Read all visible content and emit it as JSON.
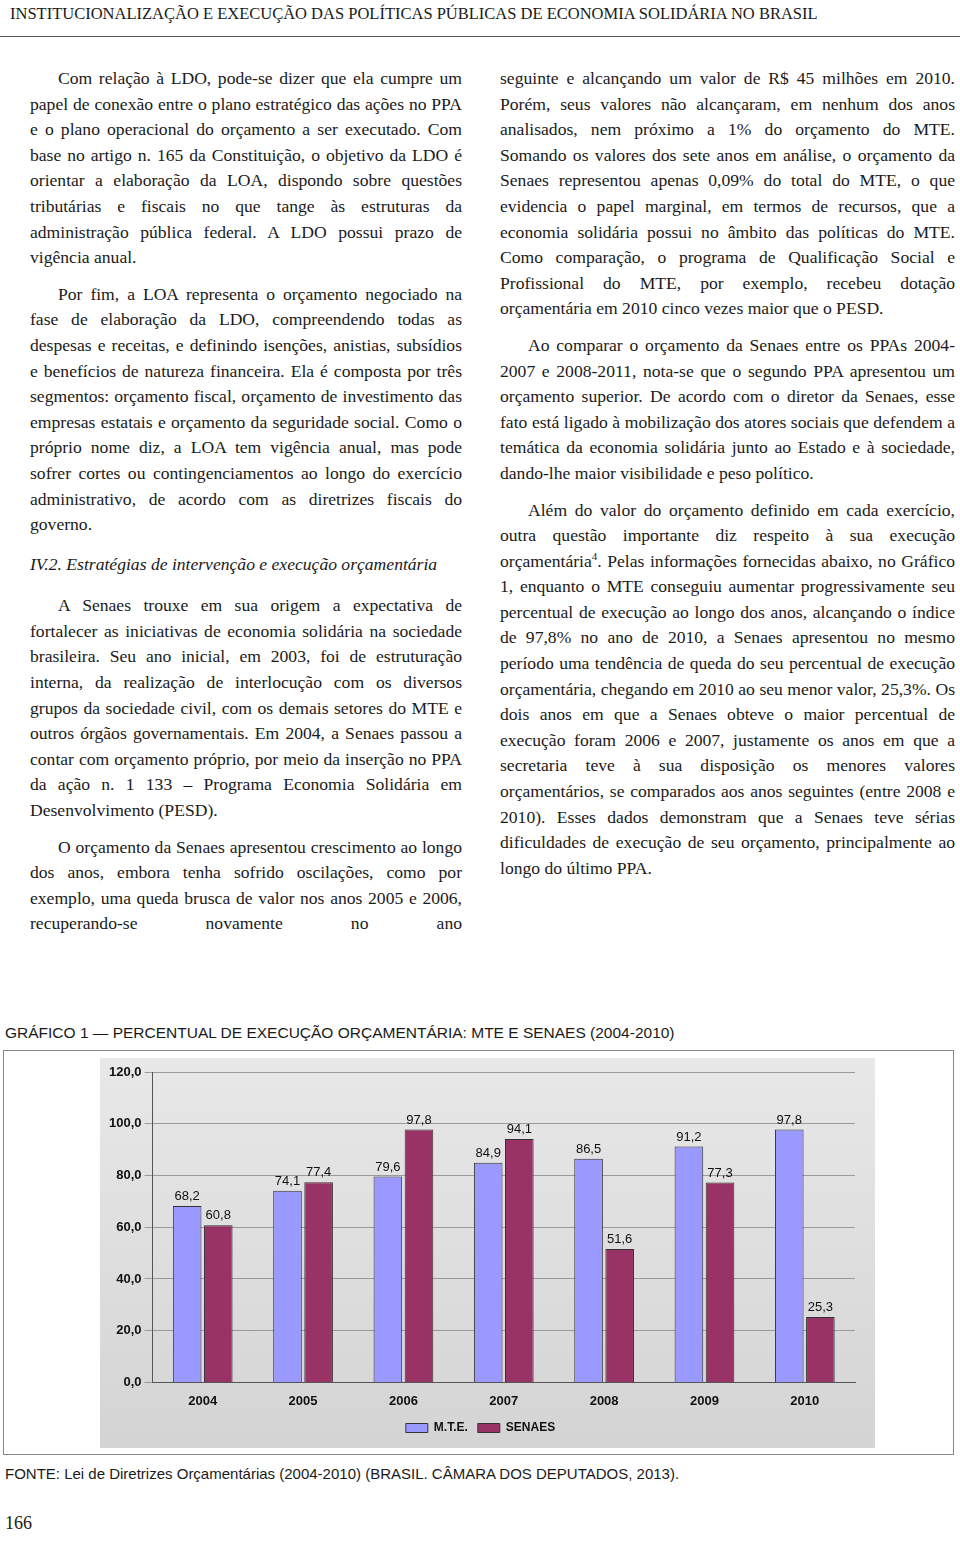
{
  "header": {
    "title": "INSTITUCIONALIZAÇÃO E EXECUÇÃO DAS POLÍTICAS PÚBLICAS DE ECONOMIA SOLIDÁRIA NO BRASIL"
  },
  "left_column": [
    "Com relação à LDO, pode-se dizer que ela cumpre um papel de conexão entre o plano estratégico das ações no PPA e o plano operacional do orçamento a ser executado. Com base no artigo n. 165 da Constituição, o objetivo da LDO é orientar a elaboração da LOA, dispondo sobre questões tributárias e fiscais no que tange às estruturas da administração pública federal. A LDO possui prazo de vigência anual.",
    "Por fim, a LOA representa o orçamento negociado na fase de elaboração da LDO, compreendendo todas as despesas e receitas, e definindo isenções, anistias, subsídios e benefícios de natureza financeira. Ela é composta por três segmentos: orçamento fiscal, orçamento de investimento das empresas estatais e orçamento da seguridade social. Como o próprio nome diz, a LOA tem vigência anual, mas pode sofrer cortes ou contingenciamentos ao longo do exercício administrativo, de acordo com as diretrizes fiscais do governo.",
    {
      "heading": "IV.2. Estratégias de intervenção e execução orçamentária"
    },
    "A Senaes trouxe em sua origem a expectativa de fortalecer as iniciativas de economia solidária na sociedade brasileira. Seu ano inicial, em 2003, foi de estruturação interna, da realização de interlocução com os diversos grupos da sociedade civil, com os demais setores do MTE e outros órgãos governamentais. Em 2004, a Senaes passou a contar com orçamento próprio, por meio da inserção no PPA da ação n. 1 133 – Programa Economia Solidária em Desenvolvimento (PESD).",
    "O orçamento da Senaes apresentou crescimento ao longo dos anos, embora tenha sofrido oscilações, como por exemplo, uma queda brusca de valor nos anos 2005 e 2006, recuperando-se novamente no ano"
  ],
  "right_column": [
    "seguinte e alcançando um valor de R$ 45 milhões em 2010. Porém, seus valores não alcançaram, em nenhum dos anos analisados, nem próximo a 1% do orçamento do MTE. Somando os valores dos sete anos em análise, o orçamento da Senaes representou apenas 0,09% do total do MTE, o que evidencia o papel marginal, em termos de recursos, que a economia solidária possui no âmbito das políticas do MTE. Como comparação, o programa de Qualificação Social e Profissional do MTE, por exemplo, recebeu dotação orçamentária em 2010 cinco vezes maior que o PESD.",
    "Ao comparar o orçamento da Senaes entre os PPAs 2004-2007 e 2008-2011, nota-se que o segundo PPA apresentou um orçamento superior. De acordo com o diretor da Senaes, esse fato está ligado à mobilização dos atores sociais que defendem a temática da economia solidária junto ao Estado e à sociedade, dando-lhe maior visibilidade e peso político.",
    {
      "before": "Além do valor do orçamento definido em cada exercício, outra questão importante diz respeito à sua execução orçamentária",
      "footnote": "4",
      "after": ". Pelas informações fornecidas abaixo, no Gráfico 1, enquanto o MTE conseguiu aumentar progressivamente seu percentual de execução ao longo dos anos, alcançando o índice de 97,8% no ano de 2010, a Senaes apresentou no mesmo período uma tendência de queda do seu percentual de execução orçamentária, chegando em 2010 ao seu menor valor, 25,3%. Os dois anos em que a Senaes obteve o maior percentual de execução foram 2006 e 2007, justamente os anos em que a secretaria teve à sua disposição os menores valores orçamentários, se comparados aos anos seguintes (entre 2008 e 2010). Esses dados demonstram que a Senaes teve sérias dificuldades de execução de seu orçamento, principalmente ao longo do último PPA."
    }
  ],
  "chart_data": {
    "type": "bar",
    "title": "GRÁFICO 1 — PERCENTUAL DE EXECUÇÃO ORÇAMENTÁRIA: MTE E SENAES (2004-2010)",
    "categories": [
      "2004",
      "2005",
      "2006",
      "2007",
      "2008",
      "2009",
      "2010"
    ],
    "series": [
      {
        "name": "M.T.E.",
        "color": "#9999ff",
        "values": [
          68.2,
          74.1,
          79.6,
          84.9,
          86.5,
          91.2,
          97.8
        ],
        "value_labels": [
          "68,2",
          "74,1",
          "79,6",
          "84,9",
          "86,5",
          "91,2",
          "97,8"
        ]
      },
      {
        "name": "SENAES",
        "color": "#993366",
        "values": [
          60.8,
          77.4,
          97.8,
          94.1,
          51.6,
          77.3,
          25.3
        ],
        "value_labels": [
          "60,8",
          "77,4",
          "97,8",
          "94,1",
          "51,6",
          "77,3",
          "25,3"
        ]
      }
    ],
    "ylim": [
      0,
      120
    ],
    "yticks": [
      {
        "value": 0,
        "label": "0,0"
      },
      {
        "value": 20,
        "label": "20,0"
      },
      {
        "value": 40,
        "label": "40,0"
      },
      {
        "value": 60,
        "label": "60,0"
      },
      {
        "value": 80,
        "label": "80,0"
      },
      {
        "value": 100,
        "label": "100,0"
      },
      {
        "value": 120,
        "label": "120,0"
      }
    ],
    "grid": true,
    "legend": "bottom",
    "data_labels": true
  },
  "source": "FONTE: Lei de Diretrizes Orçamentárias (2004-2010) (BRASIL. CÂMARA DOS DEPUTADOS, 2013).",
  "page_number": 166
}
